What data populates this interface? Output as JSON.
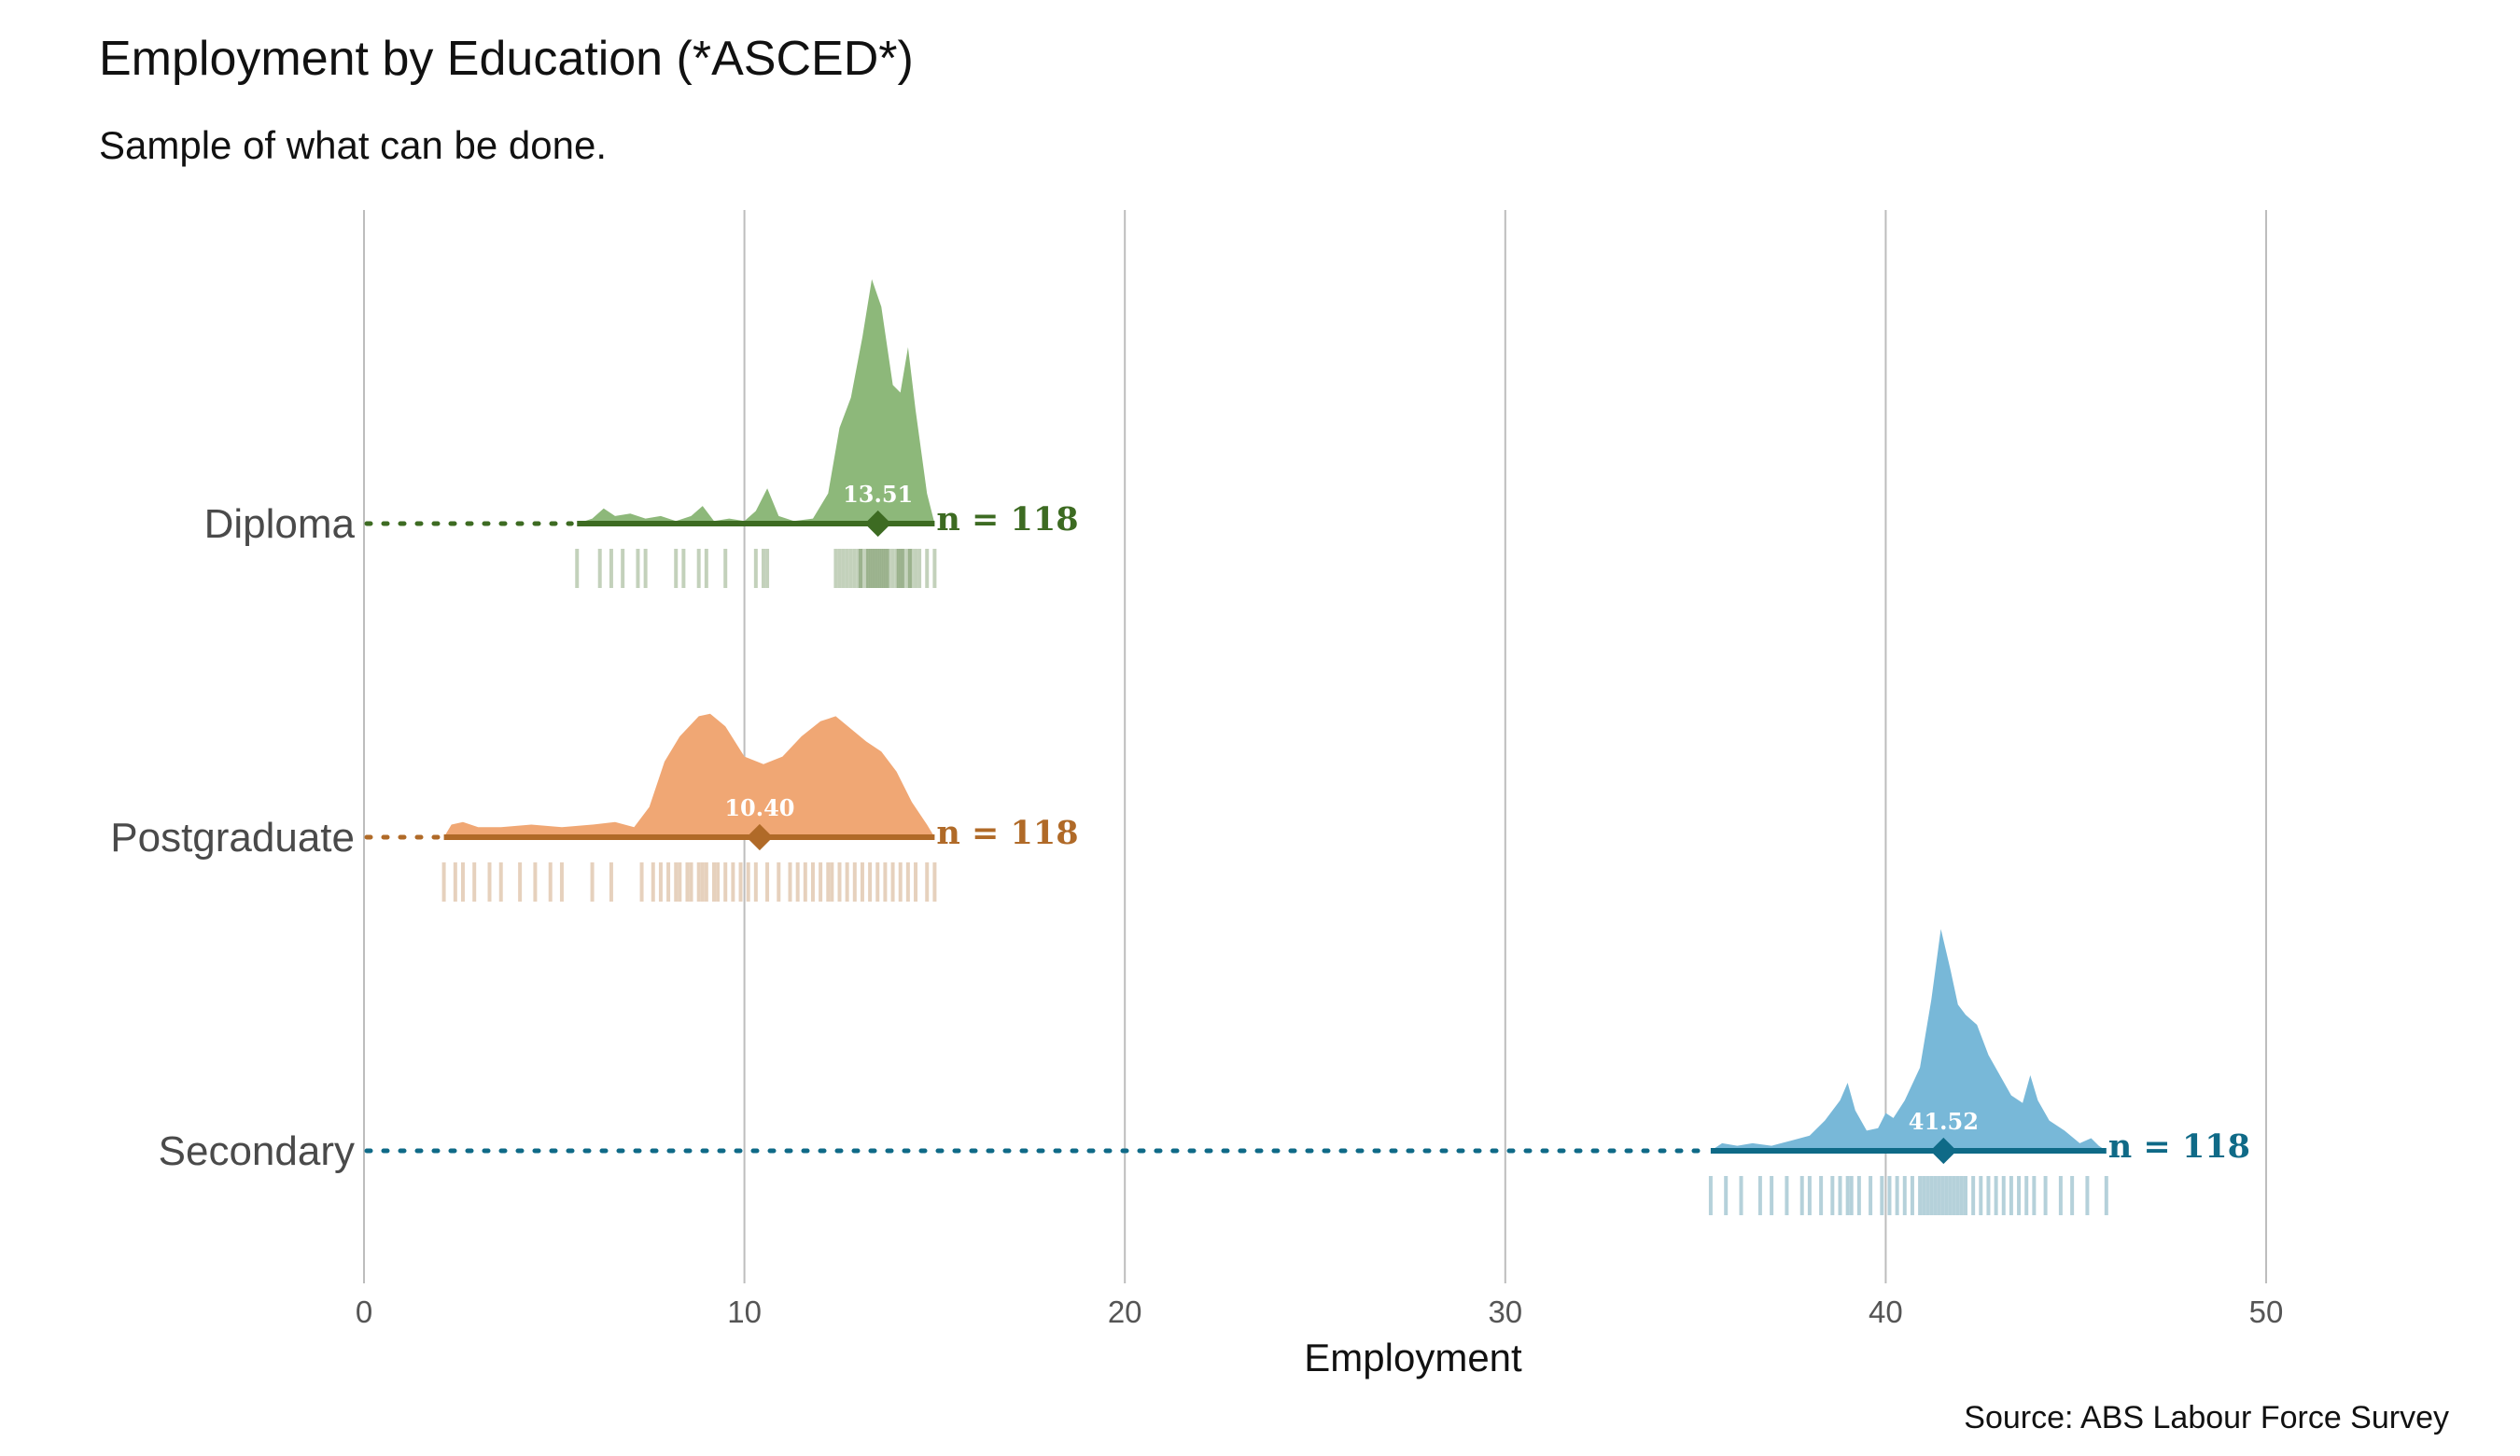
{
  "chart_data": {
    "type": "ridgeline-raincloud",
    "title": "Employment by Education (*ASCED*)",
    "subtitle": "Sample of what can be done.",
    "xlabel": "Employment",
    "ylabel": "",
    "caption": "Source: ABS Labour Force Survey",
    "xlim": [
      0,
      50
    ],
    "xticks": [
      0,
      10,
      20,
      30,
      40,
      50
    ],
    "grid": "vertical-major",
    "legend": "none",
    "categories": [
      "Diploma",
      "Postgraduate",
      "Secondary"
    ],
    "series": [
      {
        "name": "Diploma",
        "color": "#3d6b22",
        "fill": "#8db87a",
        "mean": 13.51,
        "mean_label": "13.51",
        "n": 118,
        "n_label": "n = 118",
        "range": [
          5.6,
          15.0
        ],
        "density": [
          [
            5.6,
            0.0
          ],
          [
            6.0,
            0.02
          ],
          [
            6.3,
            0.06
          ],
          [
            6.6,
            0.03
          ],
          [
            7.0,
            0.04
          ],
          [
            7.4,
            0.02
          ],
          [
            7.8,
            0.03
          ],
          [
            8.2,
            0.01
          ],
          [
            8.6,
            0.03
          ],
          [
            8.9,
            0.07
          ],
          [
            9.2,
            0.01
          ],
          [
            9.6,
            0.02
          ],
          [
            10.0,
            0.01
          ],
          [
            10.3,
            0.05
          ],
          [
            10.6,
            0.14
          ],
          [
            10.9,
            0.03
          ],
          [
            11.3,
            0.01
          ],
          [
            11.8,
            0.02
          ],
          [
            12.2,
            0.12
          ],
          [
            12.5,
            0.38
          ],
          [
            12.8,
            0.5
          ],
          [
            13.1,
            0.74
          ],
          [
            13.35,
            0.97
          ],
          [
            13.6,
            0.86
          ],
          [
            13.9,
            0.55
          ],
          [
            14.1,
            0.52
          ],
          [
            14.3,
            0.7
          ],
          [
            14.5,
            0.45
          ],
          [
            14.8,
            0.12
          ],
          [
            15.0,
            0.0
          ]
        ],
        "rug": [
          5.6,
          6.2,
          6.5,
          6.8,
          7.2,
          7.4,
          8.2,
          8.4,
          8.8,
          9.0,
          9.5,
          10.3,
          10.5,
          10.6,
          12.4,
          12.5,
          12.6,
          12.7,
          12.8,
          12.9,
          13.0,
          13.05,
          13.1,
          13.2,
          13.25,
          13.3,
          13.35,
          13.4,
          13.45,
          13.5,
          13.55,
          13.6,
          13.65,
          13.7,
          13.75,
          13.8,
          13.9,
          14.0,
          14.05,
          14.1,
          14.15,
          14.2,
          14.3,
          14.35,
          14.4,
          14.5,
          14.6,
          14.8,
          15.0
        ]
      },
      {
        "name": "Postgraduate",
        "color": "#b06a28",
        "fill": "#f0a774",
        "mean": 10.4,
        "mean_label": "10.40",
        "n": 118,
        "n_label": "n = 118",
        "range": [
          2.1,
          15.0
        ],
        "density": [
          [
            2.1,
            0.0
          ],
          [
            2.3,
            0.05
          ],
          [
            2.6,
            0.06
          ],
          [
            3.0,
            0.04
          ],
          [
            3.6,
            0.04
          ],
          [
            4.4,
            0.05
          ],
          [
            5.2,
            0.04
          ],
          [
            6.0,
            0.05
          ],
          [
            6.6,
            0.06
          ],
          [
            7.1,
            0.04
          ],
          [
            7.5,
            0.12
          ],
          [
            7.9,
            0.3
          ],
          [
            8.3,
            0.4
          ],
          [
            8.8,
            0.48
          ],
          [
            9.1,
            0.49
          ],
          [
            9.5,
            0.44
          ],
          [
            10.0,
            0.32
          ],
          [
            10.5,
            0.29
          ],
          [
            11.0,
            0.32
          ],
          [
            11.5,
            0.4
          ],
          [
            12.0,
            0.46
          ],
          [
            12.4,
            0.48
          ],
          [
            12.8,
            0.43
          ],
          [
            13.2,
            0.38
          ],
          [
            13.6,
            0.34
          ],
          [
            14.0,
            0.26
          ],
          [
            14.4,
            0.14
          ],
          [
            14.8,
            0.05
          ],
          [
            15.0,
            0.0
          ]
        ],
        "rug": [
          2.1,
          2.4,
          2.6,
          2.9,
          3.3,
          3.6,
          4.1,
          4.5,
          4.9,
          5.2,
          6.0,
          6.5,
          7.3,
          7.6,
          7.8,
          8.0,
          8.2,
          8.3,
          8.5,
          8.6,
          8.8,
          8.9,
          9.0,
          9.2,
          9.3,
          9.5,
          9.7,
          9.9,
          10.1,
          10.3,
          10.6,
          10.9,
          11.2,
          11.4,
          11.6,
          11.8,
          12.0,
          12.2,
          12.3,
          12.5,
          12.7,
          12.9,
          13.1,
          13.3,
          13.5,
          13.7,
          13.9,
          14.1,
          14.3,
          14.5,
          14.8,
          15.0
        ]
      },
      {
        "name": "Secondary",
        "color": "#0f6a87",
        "fill": "#78b8d8",
        "mean": 41.52,
        "mean_label": "41.52",
        "n": 118,
        "n_label": "n = 118",
        "range": [
          35.4,
          45.8
        ],
        "density": [
          [
            35.4,
            0.0
          ],
          [
            35.7,
            0.03
          ],
          [
            36.1,
            0.02
          ],
          [
            36.5,
            0.03
          ],
          [
            37.0,
            0.02
          ],
          [
            37.5,
            0.04
          ],
          [
            38.0,
            0.06
          ],
          [
            38.4,
            0.12
          ],
          [
            38.8,
            0.2
          ],
          [
            39.0,
            0.27
          ],
          [
            39.2,
            0.16
          ],
          [
            39.5,
            0.08
          ],
          [
            39.8,
            0.09
          ],
          [
            40.0,
            0.15
          ],
          [
            40.2,
            0.13
          ],
          [
            40.5,
            0.2
          ],
          [
            40.9,
            0.33
          ],
          [
            41.2,
            0.6
          ],
          [
            41.45,
            0.88
          ],
          [
            41.7,
            0.72
          ],
          [
            41.9,
            0.58
          ],
          [
            42.1,
            0.54
          ],
          [
            42.4,
            0.5
          ],
          [
            42.7,
            0.38
          ],
          [
            43.0,
            0.3
          ],
          [
            43.3,
            0.22
          ],
          [
            43.6,
            0.19
          ],
          [
            43.8,
            0.3
          ],
          [
            44.0,
            0.2
          ],
          [
            44.3,
            0.12
          ],
          [
            44.7,
            0.08
          ],
          [
            45.1,
            0.03
          ],
          [
            45.4,
            0.05
          ],
          [
            45.6,
            0.02
          ],
          [
            45.8,
            0.0
          ]
        ],
        "rug": [
          35.4,
          35.8,
          36.2,
          36.7,
          37.0,
          37.4,
          37.8,
          38.0,
          38.3,
          38.6,
          38.8,
          39.0,
          39.1,
          39.3,
          39.6,
          39.9,
          40.1,
          40.3,
          40.5,
          40.7,
          40.9,
          41.0,
          41.1,
          41.2,
          41.3,
          41.4,
          41.5,
          41.6,
          41.7,
          41.8,
          41.9,
          42.0,
          42.1,
          42.3,
          42.5,
          42.7,
          42.9,
          43.1,
          43.3,
          43.5,
          43.7,
          43.9,
          44.2,
          44.6,
          44.9,
          45.3,
          45.8
        ]
      }
    ]
  }
}
